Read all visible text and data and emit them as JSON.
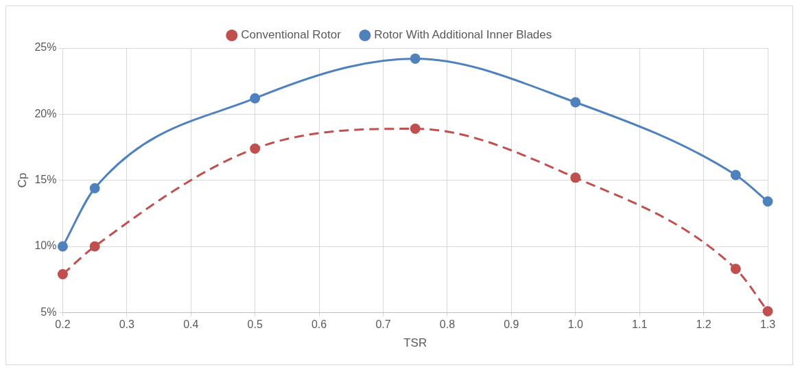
{
  "chart_data": {
    "type": "line",
    "xlabel": "TSR",
    "ylabel": "Cp",
    "xlim": [
      0.2,
      1.3
    ],
    "xticks": [
      0.2,
      0.3,
      0.4,
      0.5,
      0.6,
      0.7,
      0.8,
      0.9,
      {
        "value": 1,
        "label": "1.0"
      },
      1.1,
      1.2,
      1.3
    ],
    "ylim": [
      5,
      25
    ],
    "yticks": [
      {
        "value": 5,
        "label": "5%"
      },
      {
        "value": 10,
        "label": "10%"
      },
      {
        "value": 15,
        "label": "15%"
      },
      {
        "value": 20,
        "label": "20%"
      },
      {
        "value": 25,
        "label": "25%"
      }
    ],
    "x": [
      0.2,
      0.25,
      0.5,
      0.75,
      1.0,
      1.25,
      1.3
    ],
    "series": [
      {
        "name": "Conventional Rotor",
        "color": "#c0504d",
        "values": [
          7.9,
          10.0,
          17.4,
          18.9,
          15.2,
          8.3,
          5.1
        ],
        "line_style": "dashed"
      },
      {
        "name": "Rotor With Additional Inner Blades",
        "color": "#4f81bd",
        "values": [
          10.0,
          14.4,
          21.2,
          24.2,
          20.9,
          15.4,
          13.4
        ],
        "line_style": "solid"
      }
    ],
    "marker": "circle",
    "grid": true,
    "legend": "top"
  }
}
